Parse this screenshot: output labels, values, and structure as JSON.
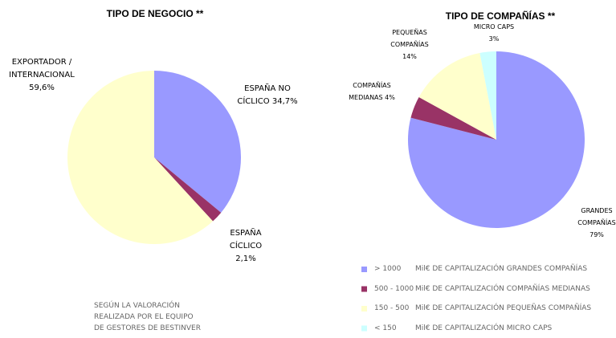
{
  "chart_data": [
    {
      "type": "pie",
      "title": "TIPO DE NEGOCIO **",
      "categories": [
        "ESPAÑA NO CÍCLICO",
        "ESPAÑA CÍCLICO",
        "EXPORTADOR / INTERNACIONAL"
      ],
      "values": [
        34.7,
        2.1,
        59.6
      ],
      "value_labels": [
        "34,7%",
        "2,1%",
        "59,6%"
      ],
      "colors": [
        "#9999ff",
        "#993366",
        "#ffffcc"
      ],
      "annotation": [
        "SEGÚN LA VALORACIÓN",
        "REALIZADA POR EL EQUIPO",
        "DE GESTORES DE BESTINVER"
      ]
    },
    {
      "type": "pie",
      "title": "TIPO DE COMPAÑÍAS **",
      "categories": [
        "GRANDES COMPAÑÍAS",
        "COMPAÑÍAS MEDIANAS",
        "PEQUEÑAS COMPAÑÍAS",
        "MICRO CAPS"
      ],
      "values": [
        79,
        4,
        14,
        3
      ],
      "value_labels": [
        "79%",
        "4%",
        "14%",
        "3%"
      ],
      "colors": [
        "#9999ff",
        "#993366",
        "#ffffcc",
        "#ccffff"
      ],
      "legend": [
        {
          "range": "> 1000",
          "text": "Mil€ DE CAPITALIZACIÓN GRANDES COMPAÑÍAS"
        },
        {
          "range": "500 - 1000",
          "text": "Mil€ DE CAPITALIZACIÓN COMPAÑÍAS MEDIANAS"
        },
        {
          "range": "150 - 500",
          "text": "Mil€ DE CAPITALIZACIÓN PEQUEÑAS COMPAÑÍAS"
        },
        {
          "range": "< 150",
          "text": "Mil€ DE CAPITALIZACIÓN MICRO CAPS"
        }
      ]
    }
  ]
}
